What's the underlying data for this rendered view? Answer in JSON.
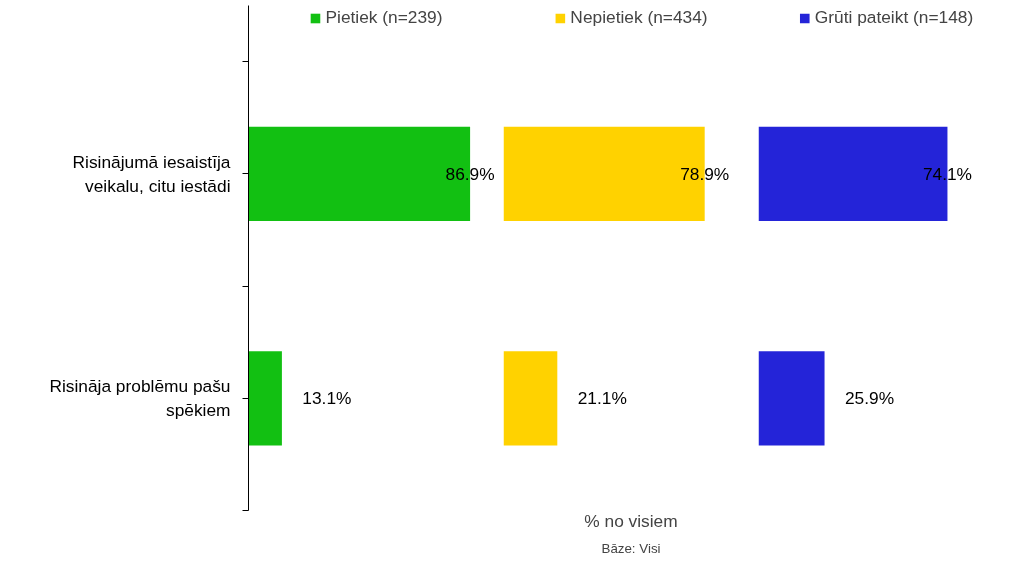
{
  "chart_data": [
    {
      "type": "bar",
      "orientation": "horizontal",
      "categories": [
        "Risinājumā iesaistīja veikalu, citu iestādi",
        "Risināja problēmu pašu spēkiem"
      ],
      "series": [
        {
          "name": "Pietiek (n=239)",
          "color": "#12c012",
          "values": [
            86.9,
            13.1
          ],
          "value_labels": [
            "86.9%",
            "13.1%"
          ]
        }
      ],
      "legend": "top"
    },
    {
      "type": "bar",
      "orientation": "horizontal",
      "categories": [
        null,
        null
      ],
      "series": [
        {
          "name": "Nepietiek (n=434)",
          "color": "#ffd200",
          "values": [
            78.9,
            21.1
          ],
          "value_labels": [
            "78.9%",
            "21.1%"
          ]
        }
      ],
      "legend": "top",
      "xlabel": "% no visiem",
      "annotations": [
        "Bāze: Visi"
      ]
    },
    {
      "type": "bar",
      "orientation": "horizontal",
      "categories": [
        null,
        null
      ],
      "series": [
        {
          "name": "Grūti pateikt (n=148)",
          "color": "#2424d8",
          "values": [
            74.1,
            25.9
          ],
          "value_labels": [
            "74.1%",
            "25.9%"
          ]
        }
      ],
      "legend": "top"
    }
  ]
}
